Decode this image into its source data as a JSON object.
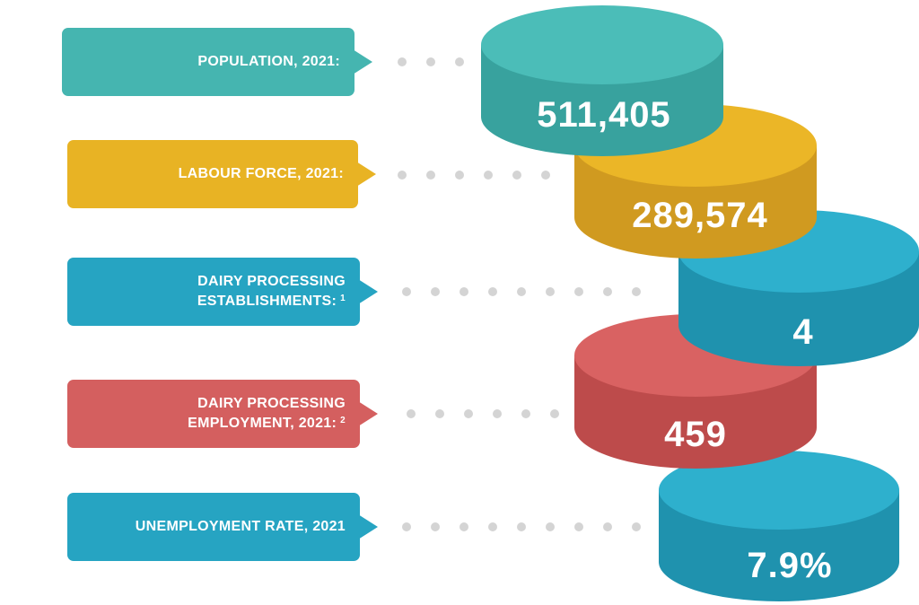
{
  "rows": [
    {
      "label": "POPULATION, 2021:",
      "label_line2": "",
      "footnote": "",
      "value": "511,405",
      "color": "#45b5b0",
      "side": "#38a29e"
    },
    {
      "label": "LABOUR FORCE, 2021:",
      "label_line2": "",
      "footnote": "",
      "value": "289,574",
      "color": "#e8b324",
      "side": "#d09a20"
    },
    {
      "label": "DAIRY PROCESSING",
      "label_line2": "ESTABLISHMENTS:",
      "footnote": "1",
      "value": "4",
      "color": "#26a4c2",
      "side": "#1f92ae"
    },
    {
      "label": "DAIRY PROCESSING",
      "label_line2": "EMPLOYMENT, 2021:",
      "footnote": "2",
      "value": "459",
      "color": "#d45f5f",
      "side": "#bd4b4b"
    },
    {
      "label": "UNEMPLOYMENT RATE, 2021",
      "label_line2": "",
      "footnote": "",
      "value": "7.9%",
      "color": "#26a4c2",
      "side": "#1f92ae"
    }
  ]
}
